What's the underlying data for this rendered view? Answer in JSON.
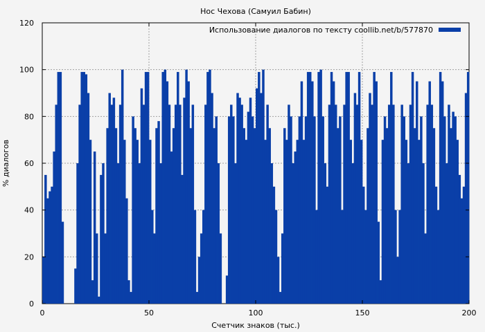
{
  "chart_data": {
    "type": "bar",
    "title": "Нос Чехова (Самуил Бабин)",
    "xlabel": "Счетчик знаков (тыс.)",
    "ylabel": "% диалогов",
    "xlim": [
      0,
      200
    ],
    "ylim": [
      0,
      120
    ],
    "xticks": [
      "0",
      "50",
      "100",
      "150",
      "200"
    ],
    "yticks": [
      "0",
      "20",
      "40",
      "60",
      "80",
      "100",
      "120"
    ],
    "grid": true,
    "legend_position": "top-right",
    "bar_color": "#0a3fa8",
    "series": [
      {
        "name": "Использование диалогов по тексту coollib.net/b/577870",
        "x": [
          0.5,
          1.5,
          2.5,
          3.5,
          4.5,
          5.5,
          6.5,
          7.5,
          8.5,
          9.5,
          10.5,
          11.5,
          12.5,
          13.5,
          14.5,
          15.5,
          16.5,
          17.5,
          18.5,
          19.5,
          20.5,
          21.5,
          22.5,
          23.5,
          24.5,
          25.5,
          26.5,
          27.5,
          28.5,
          29.5,
          30.5,
          31.5,
          32.5,
          33.5,
          34.5,
          35.5,
          36.5,
          37.5,
          38.5,
          39.5,
          40.5,
          41.5,
          42.5,
          43.5,
          44.5,
          45.5,
          46.5,
          47.5,
          48.5,
          49.5,
          50.5,
          51.5,
          52.5,
          53.5,
          54.5,
          55.5,
          56.5,
          57.5,
          58.5,
          59.5,
          60.5,
          61.5,
          62.5,
          63.5,
          64.5,
          65.5,
          66.5,
          67.5,
          68.5,
          69.5,
          70.5,
          71.5,
          72.5,
          73.5,
          74.5,
          75.5,
          76.5,
          77.5,
          78.5,
          79.5,
          80.5,
          81.5,
          82.5,
          83.5,
          84.5,
          85.5,
          86.5,
          87.5,
          88.5,
          89.5,
          90.5,
          91.5,
          92.5,
          93.5,
          94.5,
          95.5,
          96.5,
          97.5,
          98.5,
          99.5,
          100.5,
          101.5,
          102.5,
          103.5,
          104.5,
          105.5,
          106.5,
          107.5,
          108.5,
          109.5,
          110.5,
          111.5,
          112.5,
          113.5,
          114.5,
          115.5,
          116.5,
          117.5,
          118.5,
          119.5,
          120.5,
          121.5,
          122.5,
          123.5,
          124.5,
          125.5,
          126.5,
          127.5,
          128.5,
          129.5,
          130.5,
          131.5,
          132.5,
          133.5,
          134.5,
          135.5,
          136.5,
          137.5,
          138.5,
          139.5,
          140.5,
          141.5,
          142.5,
          143.5,
          144.5,
          145.5,
          146.5,
          147.5,
          148.5,
          149.5,
          150.5,
          151.5,
          152.5,
          153.5,
          154.5,
          155.5,
          156.5,
          157.5,
          158.5,
          159.5,
          160.5,
          161.5,
          162.5,
          163.5,
          164.5,
          165.5,
          166.5,
          167.5,
          168.5,
          169.5,
          170.5,
          171.5,
          172.5,
          173.5,
          174.5,
          175.5,
          176.5,
          177.5,
          178.5,
          179.5,
          180.5,
          181.5,
          182.5,
          183.5,
          184.5,
          185.5,
          186.5,
          187.5,
          188.5,
          189.5,
          190.5,
          191.5,
          192.5,
          193.5,
          194.5,
          195.5,
          196.5,
          197.5,
          198.5,
          199.5
        ],
        "values": [
          20,
          55,
          45,
          48,
          50,
          65,
          85,
          99,
          99,
          35,
          0,
          0,
          0,
          0,
          0,
          15,
          60,
          85,
          99,
          99,
          98,
          90,
          70,
          10,
          65,
          30,
          3,
          55,
          60,
          30,
          75,
          90,
          85,
          88,
          75,
          60,
          85,
          100,
          70,
          45,
          10,
          5,
          80,
          75,
          70,
          60,
          92,
          85,
          99,
          99,
          70,
          40,
          30,
          75,
          78,
          60,
          99,
          100,
          95,
          85,
          65,
          75,
          85,
          99,
          85,
          55,
          88,
          100,
          95,
          75,
          85,
          40,
          5,
          20,
          30,
          40,
          85,
          99,
          100,
          90,
          75,
          80,
          60,
          30,
          0,
          0,
          12,
          80,
          85,
          80,
          60,
          90,
          88,
          85,
          75,
          70,
          82,
          88,
          80,
          75,
          92,
          99,
          90,
          100,
          70,
          85,
          75,
          60,
          50,
          40,
          20,
          5,
          30,
          75,
          70,
          85,
          80,
          60,
          65,
          70,
          80,
          95,
          70,
          80,
          99,
          99,
          95,
          80,
          40,
          99,
          100,
          80,
          60,
          50,
          85,
          99,
          95,
          85,
          75,
          80,
          40,
          85,
          99,
          99,
          70,
          60,
          90,
          85,
          99,
          70,
          50,
          40,
          75,
          90,
          85,
          99,
          95,
          35,
          10,
          70,
          80,
          75,
          85,
          99,
          85,
          40,
          20,
          40,
          85,
          80,
          70,
          60,
          85,
          99,
          75,
          95,
          70,
          80,
          60,
          30,
          85,
          95,
          85,
          75,
          50,
          40,
          99,
          95,
          80,
          60,
          85,
          75,
          82,
          80,
          70,
          55,
          45,
          50,
          90,
          99
        ]
      }
    ]
  }
}
